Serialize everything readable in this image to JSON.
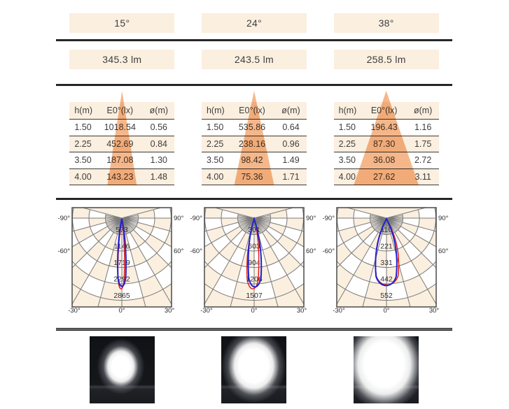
{
  "shared": {
    "table_headers": [
      "h(m)",
      "E0°(lx)",
      "ø(m)"
    ],
    "polar_angle_labels": [
      "-90°",
      "90°",
      "-60°",
      "60°",
      "-30°",
      "0°",
      "30°"
    ]
  },
  "colors": {
    "cream": "#fbefdf",
    "beam_cone": "#f2a368",
    "grid_line": "#7a7a7a",
    "plot_border": "#4a4a4a",
    "curve_blue": "#2222cc",
    "curve_red": "#dd1515",
    "divider": "#262626",
    "text": "#3e3e3e"
  },
  "columns": [
    {
      "beam_angle": "15°",
      "luminous_flux": "345.3 lm",
      "table_rows": [
        [
          "1.50",
          "1018.54",
          "0.56"
        ],
        [
          "2.25",
          "452.69",
          "0.84"
        ],
        [
          "3.50",
          "187.08",
          "1.30"
        ],
        [
          "4.00",
          "143.23",
          "1.48"
        ]
      ],
      "cone_half_width_pct": 14,
      "polar": {
        "ring_values": [
          "573",
          "1146",
          "1719",
          "2292",
          "2865"
        ],
        "blue": {
          "length": 104,
          "half_width": 7,
          "x_offset": 0
        },
        "red": {
          "length": 108,
          "half_width": 5.5,
          "x_offset": -1
        }
      },
      "photo": {
        "spot_rx": 34,
        "spot_ry": 40,
        "spot_cx": "48%",
        "spot_cy": "45%",
        "core": "38%",
        "mid": "54%",
        "halo": "74%"
      }
    },
    {
      "beam_angle": "24°",
      "luminous_flux": "243.5 lm",
      "table_rows": [
        [
          "1.50",
          "535.86",
          "0.64"
        ],
        [
          "2.25",
          "238.16",
          "0.96"
        ],
        [
          "3.50",
          "98.42",
          "1.49"
        ],
        [
          "4.00",
          "75.36",
          "1.71"
        ]
      ],
      "cone_half_width_pct": 19,
      "polar": {
        "ring_values": [
          "301",
          "603",
          "904",
          "1206",
          "1507"
        ],
        "blue": {
          "length": 105,
          "half_width": 11,
          "x_offset": 1
        },
        "red": {
          "length": 108,
          "half_width": 10,
          "x_offset": -2
        }
      },
      "photo": {
        "spot_rx": 46,
        "spot_ry": 53,
        "spot_cx": "50%",
        "spot_cy": "44%",
        "core": "45%",
        "mid": "60%",
        "halo": "80%"
      }
    },
    {
      "beam_angle": "38°",
      "luminous_flux": "258.5 lm",
      "table_rows": [
        [
          "1.50",
          "196.43",
          "1.16"
        ],
        [
          "2.25",
          "87.30",
          "1.75"
        ],
        [
          "3.50",
          "36.08",
          "2.72"
        ],
        [
          "4.00",
          "27.62",
          "3.11"
        ]
      ],
      "cone_half_width_pct": 31,
      "polar": {
        "ring_values": [
          "110",
          "221",
          "331",
          "442",
          "552"
        ],
        "blue": {
          "length": 103,
          "half_width": 18,
          "x_offset": -0.5
        },
        "red": {
          "length": 102,
          "half_width": 19.5,
          "x_offset": 1
        }
      },
      "photo": {
        "spot_rx": 58,
        "spot_ry": 66,
        "spot_cx": "47%",
        "spot_cy": "42%",
        "core": "48%",
        "mid": "64%",
        "halo": "86%"
      }
    }
  ],
  "chart_data": [
    {
      "type": "line",
      "style": "polar-photometric-diagram",
      "beam_angle": "15°",
      "radial_tick_values": [
        573,
        1146,
        1719,
        2292,
        2865
      ],
      "angle_tick_labels": [
        "-90°",
        "-60°",
        "-30°",
        "0°",
        "30°",
        "60°",
        "90°"
      ],
      "series": [
        {
          "name": "blue-curve",
          "color": "#2222cc"
        },
        {
          "name": "red-curve",
          "color": "#dd1515"
        }
      ],
      "peak_at_angle": "0°"
    },
    {
      "type": "line",
      "style": "polar-photometric-diagram",
      "beam_angle": "24°",
      "radial_tick_values": [
        301,
        603,
        904,
        1206,
        1507
      ],
      "angle_tick_labels": [
        "-90°",
        "-60°",
        "-30°",
        "0°",
        "30°",
        "60°",
        "90°"
      ],
      "series": [
        {
          "name": "blue-curve",
          "color": "#2222cc"
        },
        {
          "name": "red-curve",
          "color": "#dd1515"
        }
      ],
      "peak_at_angle": "0°"
    },
    {
      "type": "line",
      "style": "polar-photometric-diagram",
      "beam_angle": "38°",
      "radial_tick_values": [
        110,
        221,
        331,
        442,
        552
      ],
      "angle_tick_labels": [
        "-90°",
        "-60°",
        "-30°",
        "0°",
        "30°",
        "60°",
        "90°"
      ],
      "series": [
        {
          "name": "blue-curve",
          "color": "#2222cc"
        },
        {
          "name": "red-curve",
          "color": "#dd1515"
        }
      ],
      "peak_at_angle": "0°"
    }
  ]
}
